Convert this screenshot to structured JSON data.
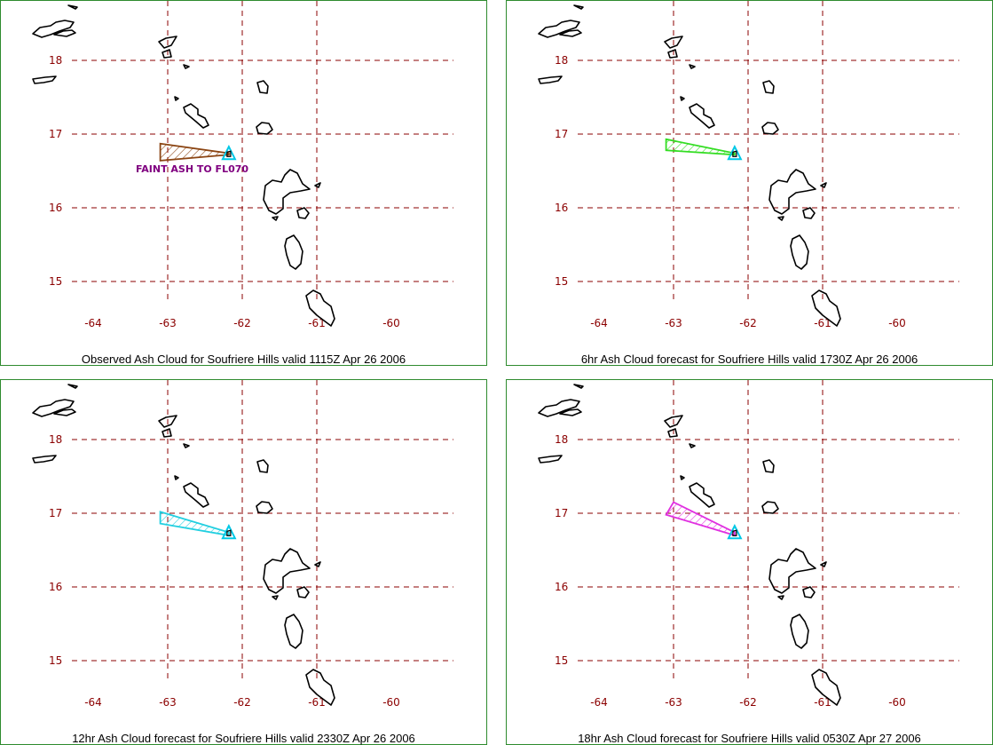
{
  "map": {
    "lon_ticks": [
      -64,
      -63,
      -62,
      -61,
      -60
    ],
    "lat_ticks": [
      18,
      17,
      16,
      15
    ],
    "volcano_marker": "triangle-marker",
    "volcano_location": {
      "lon": -62.18,
      "lat": 16.72
    }
  },
  "panels": [
    {
      "caption": "Observed Ash Cloud for Soufriere  Hills valid 1115Z Apr 26 2006",
      "label": "FAINT ASH TO FL070",
      "color": "#8b4513",
      "polygon": [
        [
          -63.1,
          16.87
        ],
        [
          -62.18,
          16.74
        ],
        [
          -62.18,
          16.72
        ],
        [
          -63.1,
          16.64
        ]
      ]
    },
    {
      "caption": "6hr Ash Cloud forecast for Soufriere  Hills valid 1730Z Apr 26 2006",
      "label": "",
      "color": "#33dd22",
      "polygon": [
        [
          -63.1,
          16.93
        ],
        [
          -62.18,
          16.74
        ],
        [
          -62.18,
          16.72
        ],
        [
          -63.1,
          16.78
        ]
      ]
    },
    {
      "caption": "12hr Ash Cloud forecast for Soufriere  Hills valid 2330Z Apr 26 2006",
      "label": "",
      "color": "#22cfe0",
      "polygon": [
        [
          -63.1,
          17.02
        ],
        [
          -62.18,
          16.74
        ],
        [
          -62.18,
          16.7
        ],
        [
          -63.1,
          16.86
        ]
      ]
    },
    {
      "caption": "18hr Ash Cloud forecast for Soufriere  Hills valid 0530Z Apr 27 2006",
      "label": "",
      "color": "#e030e0",
      "polygon": [
        [
          -63.0,
          17.15
        ],
        [
          -62.18,
          16.74
        ],
        [
          -62.18,
          16.7
        ],
        [
          -63.1,
          16.98
        ]
      ]
    }
  ]
}
